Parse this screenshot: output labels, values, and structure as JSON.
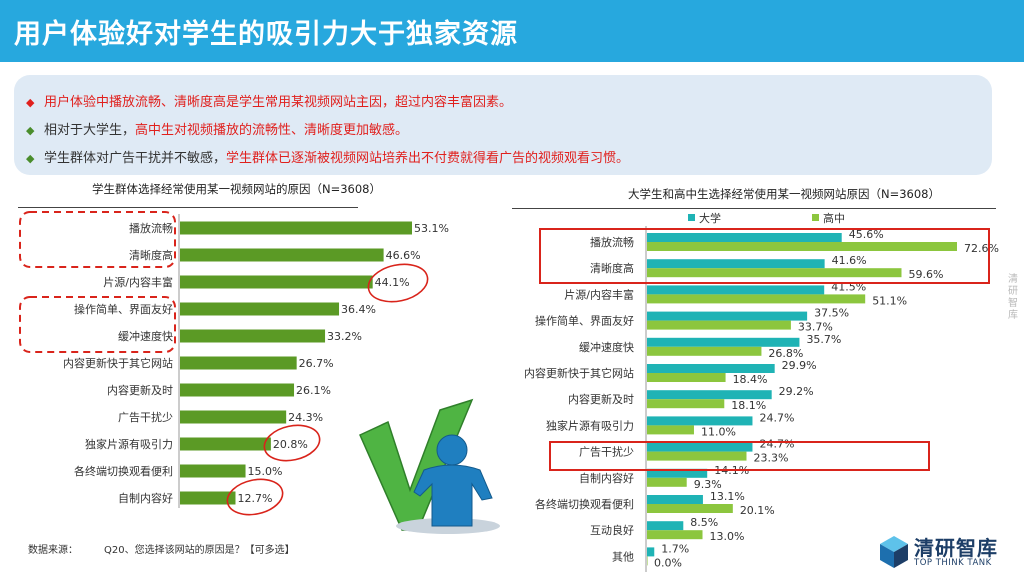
{
  "header": {
    "title": "用户体验好对学生的吸引力大于独家资源"
  },
  "summary": {
    "bullets": [
      {
        "mark": "◆",
        "text": "用户体验中播放流畅、清晰度高是学生常用某视频网站主因，超过内容丰富因素。"
      },
      {
        "mark": "◆",
        "plain": "相对于大学生，",
        "text": "高中生对视频播放的流畅性、清晰度更加敏感。"
      },
      {
        "mark": "◆",
        "plain": "学生群体对广告干扰并不敏感，",
        "text": "学生群体已逐渐被视频网站培养出不付费就得看广告的视频观看习惯。"
      }
    ]
  },
  "colors": {
    "title_bg": "#27a8de",
    "left_bar": "#5b9a25",
    "college": "#1fb3b5",
    "highschool": "#8cc63e",
    "highlight_red": "#d9241b",
    "summary_bg": "#dfeaf5"
  },
  "icons": {
    "check": "green-checkmark-icon",
    "person": "person-icon",
    "logo": "cube-logo-icon"
  },
  "chart_data": [
    {
      "type": "bar",
      "orientation": "horizontal",
      "title": "学生群体选择经常使用某一视频网站的原因（N=3608）",
      "categories": [
        "播放流畅",
        "清晰度高",
        "片源/内容丰富",
        "操作简单、界面友好",
        "缓冲速度快",
        "内容更新快于其它网站",
        "内容更新及时",
        "广告干扰少",
        "独家片源有吸引力",
        "各终端切换观看便利",
        "自制内容好"
      ],
      "values": [
        53.1,
        46.6,
        44.1,
        36.4,
        33.2,
        26.7,
        26.1,
        24.3,
        20.8,
        15.0,
        12.7
      ],
      "value_labels": [
        "53.1%",
        "46.6%",
        "44.1%",
        "36.4%",
        "33.2%",
        "26.7%",
        "26.1%",
        "24.3%",
        "20.8%",
        "15.0%",
        "12.7%"
      ],
      "xlim": [
        0,
        60
      ],
      "grid": false
    },
    {
      "type": "bar",
      "orientation": "horizontal",
      "title": "大学生和高中生选择经常使用某一视频网站原因（N=3608）",
      "categories": [
        "播放流畅",
        "清晰度高",
        "片源/内容丰富",
        "操作简单、界面友好",
        "缓冲速度快",
        "内容更新快于其它网站",
        "内容更新及时",
        "独家片源有吸引力",
        "广告干扰少",
        "自制内容好",
        "各终端切换观看便利",
        "互动良好",
        "其他"
      ],
      "series": [
        {
          "name": "大学",
          "values": [
            45.6,
            41.6,
            41.5,
            37.5,
            35.7,
            29.9,
            29.2,
            24.7,
            24.7,
            14.1,
            13.1,
            8.5,
            1.7
          ],
          "value_labels": [
            "45.6%",
            "41.6%",
            "41.5%",
            "37.5%",
            "35.7%",
            "29.9%",
            "29.2%",
            "24.7%",
            "24.7%",
            "14.1%",
            "13.1%",
            "8.5%",
            "1.7%"
          ]
        },
        {
          "name": "高中",
          "values": [
            72.6,
            59.6,
            51.1,
            33.7,
            26.8,
            18.4,
            18.1,
            11.0,
            23.3,
            9.3,
            20.1,
            13.0,
            0.0
          ],
          "value_labels": [
            "72.6%",
            "59.6%",
            "51.1%",
            "33.7%",
            "26.8%",
            "18.4%",
            "18.1%",
            "11.0%",
            "23.3%",
            "9.3%",
            "20.1%",
            "13.0%",
            "0.0%"
          ]
        }
      ],
      "legend": "top",
      "xlim": [
        0,
        80
      ],
      "grid": false
    }
  ],
  "footer": {
    "source_label": "数据来源：",
    "source_text": "Q20、您选择该网站的原因是？【可多选】"
  },
  "logo": {
    "name_zh": "清研智库",
    "name_en": "TOP THINK TANK"
  },
  "side_mark": "清研智库"
}
